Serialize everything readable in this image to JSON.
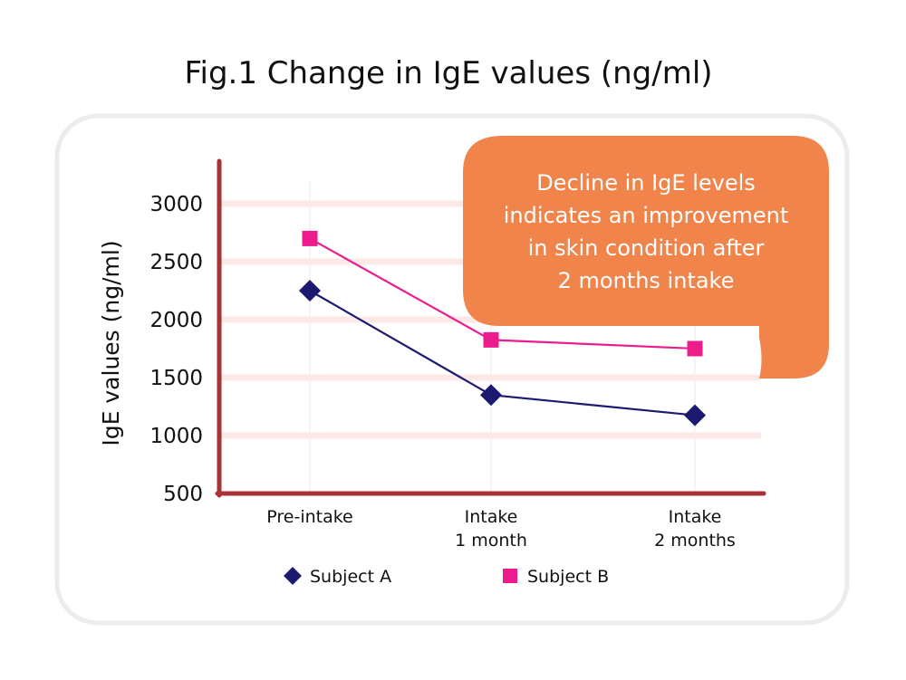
{
  "chart_data": {
    "type": "line",
    "title": "Fig.1 Change in IgE values (ng/ml)",
    "xlabel": "",
    "ylabel": "IgE values (ng/ml)",
    "ylim": [
      500,
      3000
    ],
    "yticks": [
      "3000",
      "2500",
      "2000",
      "1500",
      "1000",
      "500"
    ],
    "ytick_values": [
      3000,
      2500,
      2000,
      1500,
      1000,
      500
    ],
    "categories": [
      [
        "Pre-intake"
      ],
      [
        "Intake",
        "1 month"
      ],
      [
        "Intake",
        "2 months"
      ]
    ],
    "series": [
      {
        "name": "Subject A",
        "values": [
          2250,
          1350,
          1175
        ],
        "color": "#1c1a70",
        "marker": "diamond"
      },
      {
        "name": "Subject B",
        "values": [
          2700,
          1825,
          1750
        ],
        "color": "#ec1c8c",
        "marker": "square"
      }
    ],
    "annotation": {
      "lines": [
        "Decline in IgE levels",
        "indicates an improvement",
        "in skin condition after",
        "2 months intake"
      ],
      "color": "#f0844a"
    },
    "axis_color": "#a83236",
    "grid": true,
    "legend_position": "bottom"
  }
}
